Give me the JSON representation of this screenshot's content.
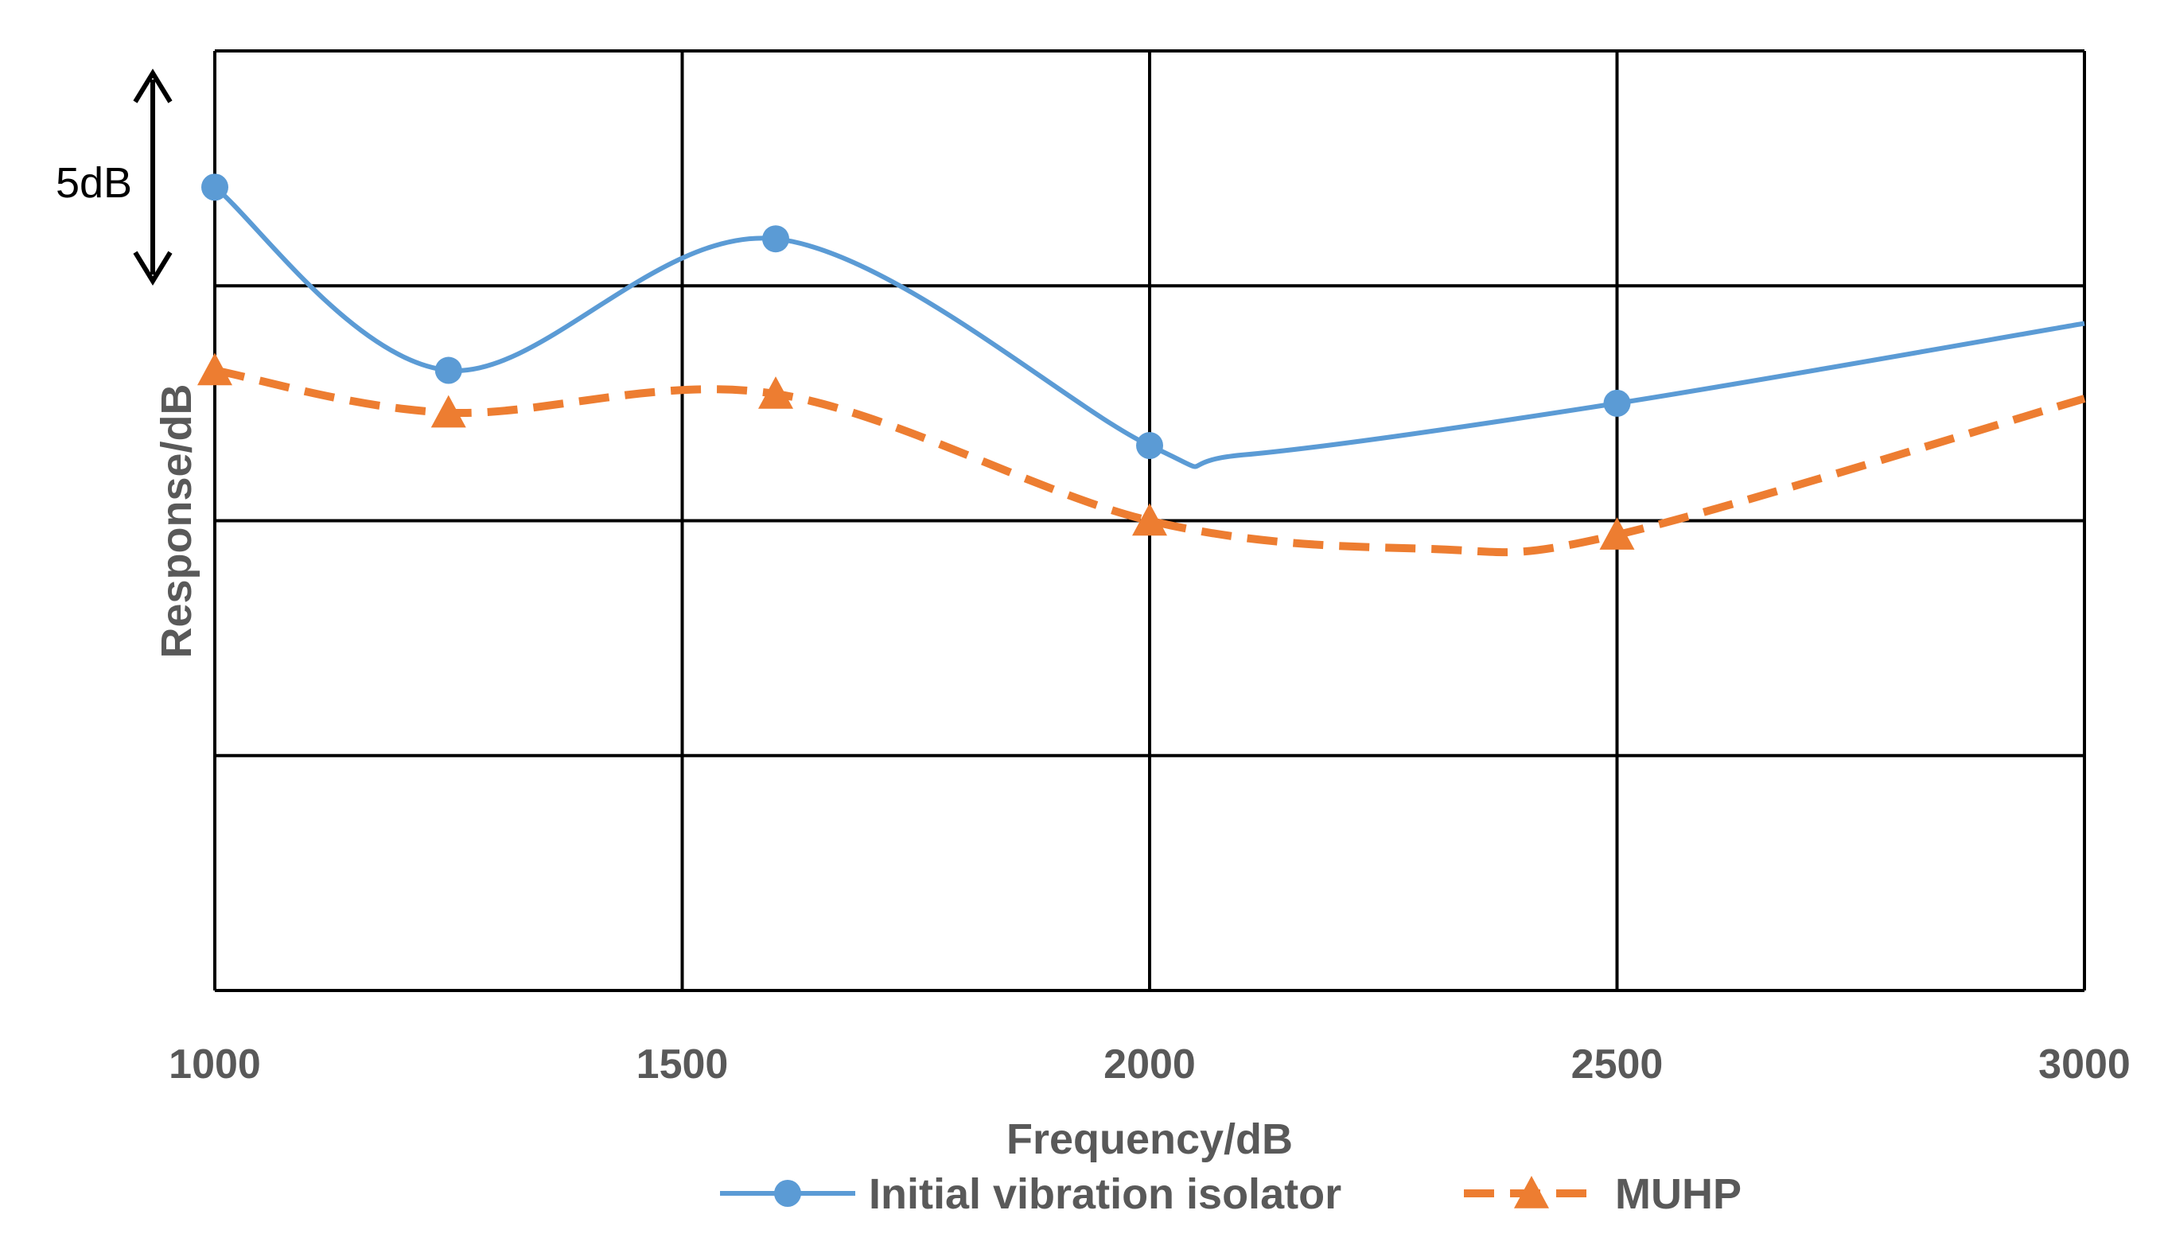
{
  "chart_data": {
    "type": "line",
    "title": "",
    "xlabel": "Frequency/dB",
    "ylabel": "Response/dB",
    "x_ticks": [
      "1000",
      "1500",
      "2000",
      "2500",
      "3000"
    ],
    "xlim": [
      1000,
      3000
    ],
    "ylim": [
      0,
      20
    ],
    "y_grid_step": 5,
    "y_tick_labels_shown": false,
    "grid": true,
    "legend_position": "bottom-center",
    "scale_annotation": "5dB",
    "scale_annotation_range": [
      15,
      20
    ],
    "series": [
      {
        "name": "Initial vibration isolator",
        "color": "#5B9BD5",
        "line_style": "solid",
        "marker": "circle",
        "x": [
          1000,
          1250,
          1600,
          2000,
          2500
        ],
        "y": [
          17.1,
          13.2,
          16.0,
          11.6,
          12.5
        ],
        "curve_x": [
          1000,
          1250,
          1600,
          2000,
          2100,
          2500,
          3000
        ],
        "curve_y": [
          17.1,
          13.2,
          16.0,
          11.6,
          11.4,
          12.5,
          14.2
        ]
      },
      {
        "name": "MUHP",
        "color": "#ED7D31",
        "line_style": "dashed",
        "marker": "triangle",
        "x": [
          1000,
          1250,
          1600,
          2000,
          2500
        ],
        "y": [
          13.2,
          12.3,
          12.7,
          10.0,
          9.7
        ],
        "curve_x": [
          1000,
          1250,
          1600,
          2000,
          2300,
          2500,
          3000
        ],
        "curve_y": [
          13.2,
          12.3,
          12.7,
          10.0,
          9.4,
          9.7,
          12.6
        ]
      }
    ]
  }
}
